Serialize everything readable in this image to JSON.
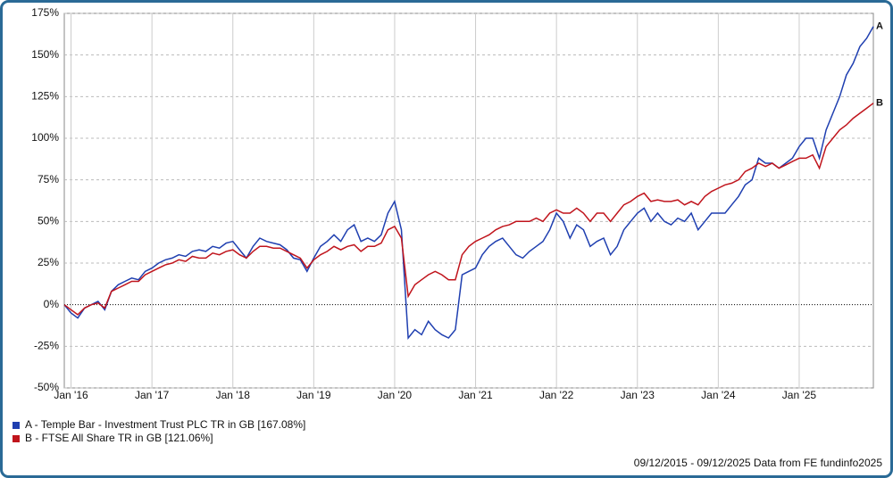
{
  "chart_data": {
    "type": "line",
    "x": [
      "2015-12",
      "2016-01",
      "2016-02",
      "2016-03",
      "2016-04",
      "2016-05",
      "2016-06",
      "2016-07",
      "2016-08",
      "2016-09",
      "2016-10",
      "2016-11",
      "2016-12",
      "2017-01",
      "2017-02",
      "2017-03",
      "2017-04",
      "2017-05",
      "2017-06",
      "2017-07",
      "2017-08",
      "2017-09",
      "2017-10",
      "2017-11",
      "2017-12",
      "2018-01",
      "2018-02",
      "2018-03",
      "2018-04",
      "2018-05",
      "2018-06",
      "2018-07",
      "2018-08",
      "2018-09",
      "2018-10",
      "2018-11",
      "2018-12",
      "2019-01",
      "2019-02",
      "2019-03",
      "2019-04",
      "2019-05",
      "2019-06",
      "2019-07",
      "2019-08",
      "2019-09",
      "2019-10",
      "2019-11",
      "2019-12",
      "2020-01",
      "2020-02",
      "2020-03",
      "2020-04",
      "2020-05",
      "2020-06",
      "2020-07",
      "2020-08",
      "2020-09",
      "2020-10",
      "2020-11",
      "2020-12",
      "2021-01",
      "2021-02",
      "2021-03",
      "2021-04",
      "2021-05",
      "2021-06",
      "2021-07",
      "2021-08",
      "2021-09",
      "2021-10",
      "2021-11",
      "2021-12",
      "2022-01",
      "2022-02",
      "2022-03",
      "2022-04",
      "2022-05",
      "2022-06",
      "2022-07",
      "2022-08",
      "2022-09",
      "2022-10",
      "2022-11",
      "2022-12",
      "2023-01",
      "2023-02",
      "2023-03",
      "2023-04",
      "2023-05",
      "2023-06",
      "2023-07",
      "2023-08",
      "2023-09",
      "2023-10",
      "2023-11",
      "2023-12",
      "2024-01",
      "2024-02",
      "2024-03",
      "2024-04",
      "2024-05",
      "2024-06",
      "2024-07",
      "2024-08",
      "2024-09",
      "2024-10",
      "2024-11",
      "2024-12",
      "2025-01",
      "2025-02",
      "2025-03",
      "2025-04",
      "2025-05",
      "2025-06",
      "2025-07",
      "2025-08",
      "2025-09",
      "2025-10",
      "2025-11",
      "2025-12"
    ],
    "series": [
      {
        "name": "A - Temple Bar - Investment Trust PLC TR in GB [167.08%]",
        "end_label": "A",
        "color": "#1f3fb0",
        "values": [
          0,
          -5,
          -8,
          -2,
          0,
          2,
          -3,
          8,
          12,
          14,
          16,
          15,
          20,
          22,
          25,
          27,
          28,
          30,
          29,
          32,
          33,
          32,
          35,
          34,
          37,
          38,
          33,
          28,
          35,
          40,
          38,
          37,
          36,
          33,
          28,
          27,
          20,
          28,
          35,
          38,
          42,
          38,
          45,
          48,
          38,
          40,
          38,
          42,
          55,
          62,
          45,
          -20,
          -15,
          -18,
          -10,
          -15,
          -18,
          -20,
          -15,
          18,
          20,
          22,
          30,
          35,
          38,
          40,
          35,
          30,
          28,
          32,
          35,
          38,
          45,
          55,
          50,
          40,
          48,
          45,
          35,
          38,
          40,
          30,
          35,
          45,
          50,
          55,
          58,
          50,
          55,
          50,
          48,
          52,
          50,
          55,
          45,
          50,
          55,
          55,
          55,
          60,
          65,
          72,
          75,
          88,
          85,
          85,
          82,
          85,
          88,
          95,
          100,
          100,
          88,
          105,
          115,
          125,
          138,
          145,
          155,
          160,
          167.08
        ]
      },
      {
        "name": "B - FTSE All Share TR in GB [121.06%]",
        "end_label": "B",
        "color": "#c0141c",
        "values": [
          0,
          -3,
          -6,
          -2,
          0,
          1,
          -2,
          8,
          10,
          12,
          14,
          14,
          18,
          20,
          22,
          24,
          25,
          27,
          26,
          29,
          28,
          28,
          31,
          30,
          32,
          33,
          30,
          28,
          32,
          35,
          35,
          34,
          34,
          32,
          30,
          28,
          22,
          27,
          30,
          32,
          35,
          33,
          35,
          36,
          32,
          35,
          35,
          37,
          45,
          47,
          40,
          5,
          12,
          15,
          18,
          20,
          18,
          15,
          15,
          30,
          35,
          38,
          40,
          42,
          45,
          47,
          48,
          50,
          50,
          50,
          52,
          50,
          55,
          57,
          55,
          55,
          58,
          55,
          50,
          55,
          55,
          50,
          55,
          60,
          62,
          65,
          67,
          62,
          63,
          62,
          62,
          63,
          60,
          62,
          60,
          65,
          68,
          70,
          72,
          73,
          75,
          80,
          82,
          85,
          83,
          85,
          82,
          84,
          86,
          88,
          88,
          90,
          82,
          95,
          100,
          105,
          108,
          112,
          115,
          118,
          121.06
        ]
      }
    ],
    "ylim": [
      -50,
      175
    ],
    "yticks": [
      {
        "value": -50,
        "label": "-50%"
      },
      {
        "value": -25,
        "label": "-25%"
      },
      {
        "value": 0,
        "label": "0%"
      },
      {
        "value": 25,
        "label": "25%"
      },
      {
        "value": 50,
        "label": "50%"
      },
      {
        "value": 75,
        "label": "75%"
      },
      {
        "value": 100,
        "label": "100%"
      },
      {
        "value": 125,
        "label": "125%"
      },
      {
        "value": 150,
        "label": "150%"
      },
      {
        "value": 175,
        "label": "175%"
      }
    ],
    "xticks": [
      {
        "value": "2016-01",
        "label": "Jan '16"
      },
      {
        "value": "2017-01",
        "label": "Jan '17"
      },
      {
        "value": "2018-01",
        "label": "Jan '18"
      },
      {
        "value": "2019-01",
        "label": "Jan '19"
      },
      {
        "value": "2020-01",
        "label": "Jan '20"
      },
      {
        "value": "2021-01",
        "label": "Jan '21"
      },
      {
        "value": "2022-01",
        "label": "Jan '22"
      },
      {
        "value": "2023-01",
        "label": "Jan '23"
      },
      {
        "value": "2024-01",
        "label": "Jan '24"
      },
      {
        "value": "2025-01",
        "label": "Jan '25"
      }
    ],
    "grid": true,
    "footnote": "09/12/2015 - 09/12/2025 Data from FE fundinfo2025"
  }
}
